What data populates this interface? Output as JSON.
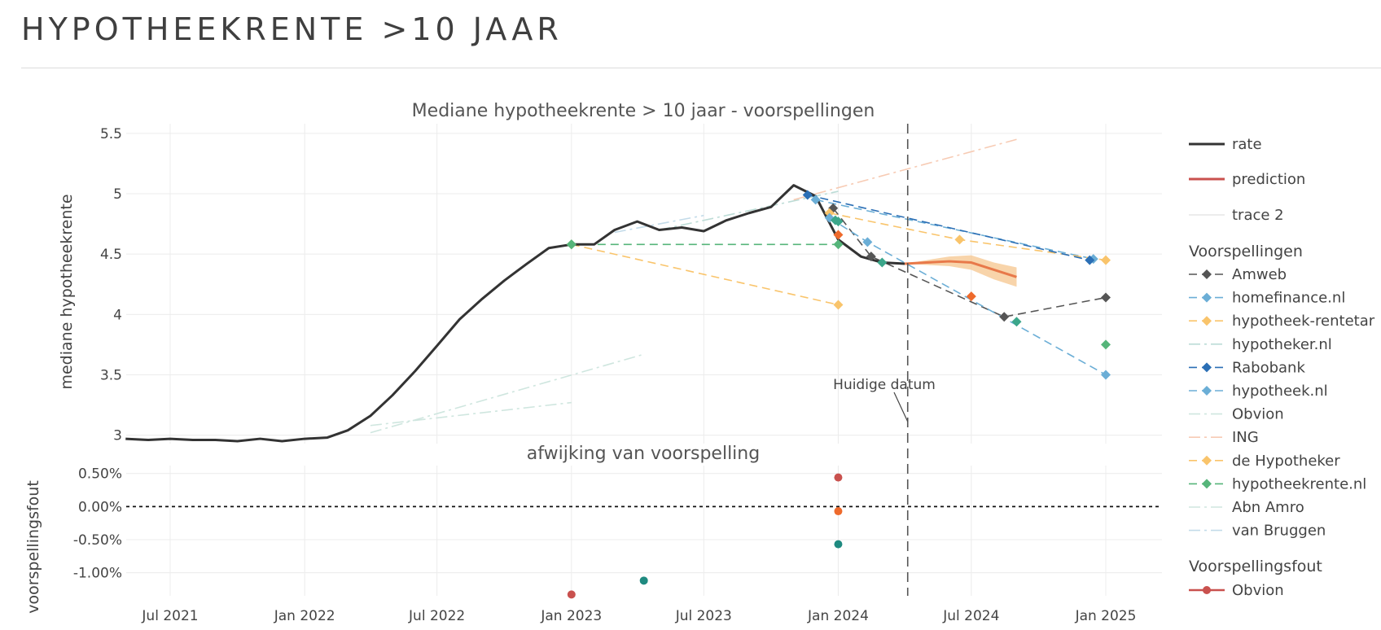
{
  "page": {
    "title": "HYPOTHEEKRENTE >10 JAAR"
  },
  "colors": {
    "rate": "#333333",
    "prediction": "#e8794a",
    "band": "#f5c58e",
    "grid": "#ececec",
    "text": "#444444"
  },
  "chart_data": [
    {
      "type": "line",
      "title": "Mediane hypotheekrente > 10 jaar - voorspellingen",
      "ylabel": "mediane hypotheekrente",
      "xlabel": "",
      "x_tick_labels": [
        "Jul 2021",
        "Jan 2022",
        "Jul 2022",
        "Jan 2023",
        "Jul 2023",
        "Jan 2024",
        "Jul 2024",
        "Jan 2025"
      ],
      "y_tick_labels": [
        "3",
        "3.5",
        "4",
        "4.5",
        "5",
        "5.5"
      ],
      "ylim": [
        2.93,
        5.58
      ],
      "grid": true,
      "legend": "right",
      "annotation": {
        "text": "Huidige datum",
        "x": "2024-04-05"
      },
      "series": [
        {
          "name": "rate",
          "color": "#333333",
          "x": [
            "2021-05-01",
            "2021-06-01",
            "2021-07-01",
            "2021-08-01",
            "2021-09-01",
            "2021-10-01",
            "2021-11-01",
            "2021-12-01",
            "2022-01-01",
            "2022-02-01",
            "2022-03-01",
            "2022-04-01",
            "2022-05-01",
            "2022-06-01",
            "2022-07-01",
            "2022-08-01",
            "2022-09-01",
            "2022-10-01",
            "2022-11-01",
            "2022-12-01",
            "2023-01-01",
            "2023-02-01",
            "2023-03-01",
            "2023-04-01",
            "2023-05-01",
            "2023-06-01",
            "2023-07-01",
            "2023-08-01",
            "2023-09-01",
            "2023-10-01",
            "2023-11-01",
            "2023-12-01",
            "2024-01-01",
            "2024-02-01",
            "2024-03-01",
            "2024-04-01"
          ],
          "y": [
            2.97,
            2.96,
            2.97,
            2.96,
            2.96,
            2.95,
            2.97,
            2.95,
            2.97,
            2.98,
            3.04,
            3.16,
            3.33,
            3.53,
            3.74,
            3.96,
            4.13,
            4.28,
            4.42,
            4.55,
            4.58,
            4.58,
            4.7,
            4.77,
            4.7,
            4.72,
            4.69,
            4.78,
            4.84,
            4.89,
            5.07,
            4.98,
            4.62,
            4.48,
            4.43,
            4.42
          ]
        },
        {
          "name": "prediction",
          "color": "#e8794a",
          "x": [
            "2024-04-01",
            "2024-05-01",
            "2024-06-01",
            "2024-07-01",
            "2024-08-01",
            "2024-09-01"
          ],
          "y": [
            4.42,
            4.43,
            4.44,
            4.43,
            4.37,
            4.31
          ],
          "band_low": [
            4.42,
            4.41,
            4.4,
            4.37,
            4.29,
            4.23
          ],
          "band_high": [
            4.42,
            4.45,
            4.48,
            4.49,
            4.43,
            4.39
          ]
        },
        {
          "name": "trace 2",
          "color": "#e0e0e0",
          "x": [],
          "y": []
        }
      ]
    },
    {
      "type": "scatter",
      "title": "afwijking van voorspelling",
      "ylabel": "voorspellingsfout",
      "y_tick_labels": [
        "0.50%",
        "0.00%",
        "-0.50%",
        "-1.00%"
      ],
      "ylim": [
        -1.35,
        0.62
      ],
      "zero_line": true,
      "points": [
        {
          "x": "2023-01-01",
          "y": -1.33,
          "color": "#c9514e"
        },
        {
          "x": "2023-04-10",
          "y": -1.12,
          "color": "#1f8a80"
        },
        {
          "x": "2024-01-01",
          "y": 0.44,
          "color": "#c9514e"
        },
        {
          "x": "2024-01-01",
          "y": -0.07,
          "color": "#ee6a2c"
        },
        {
          "x": "2024-01-01",
          "y": -0.57,
          "color": "#1f8a80"
        }
      ]
    }
  ],
  "voorspellingen": [
    {
      "name": "Amweb",
      "color": "#555555",
      "dash": "10,6",
      "marker": true,
      "from": {
        "x": "2023-12-25",
        "y": 4.88
      },
      "points": [
        {
          "x": "2024-02-15",
          "y": 4.48
        },
        {
          "x": "2024-08-15",
          "y": 3.98
        },
        {
          "x": "2025-01-01",
          "y": 4.14
        }
      ]
    },
    {
      "name": "homefinance.nl",
      "color": "#6baed6",
      "dash": "10,6",
      "marker": true,
      "from": {
        "x": "2023-12-01",
        "y": 4.95
      },
      "points": [
        {
          "x": "2024-12-15",
          "y": 4.46
        }
      ]
    },
    {
      "name": "hypotheek-rentetar",
      "color": "#f9c46b",
      "dash": "10,6",
      "marker": true,
      "from": {
        "x": "2023-12-20",
        "y": 4.84
      },
      "points": [
        {
          "x": "2024-06-15",
          "y": 4.62
        },
        {
          "x": "2025-01-01",
          "y": 4.45
        }
      ]
    },
    {
      "name": "hypotheker.nl",
      "color": "#bcdcd6",
      "dash": "14,5,3,5",
      "marker": false,
      "from": {
        "x": "2023-05-01",
        "y": 4.7
      },
      "points": [
        {
          "x": "2024-01-01",
          "y": 5.02
        }
      ]
    },
    {
      "name": "Rabobank",
      "color": "#2b6fb5",
      "dash": "10,6",
      "marker": true,
      "from": {
        "x": "2023-11-20",
        "y": 4.99
      },
      "points": [
        {
          "x": "2024-12-10",
          "y": 4.45
        }
      ]
    },
    {
      "name": "hypotheek.nl",
      "color": "#6baed6",
      "dash": "10,6",
      "marker": true,
      "from": {
        "x": "2023-12-20",
        "y": 4.8
      },
      "points": [
        {
          "x": "2024-02-10",
          "y": 4.6
        },
        {
          "x": "2025-01-01",
          "y": 3.5
        }
      ]
    },
    {
      "name": "Obvion",
      "color": "#cfe6df",
      "dash": "14,5,3,5",
      "marker": false,
      "from": {
        "x": "2022-04-01",
        "y": 3.08
      },
      "points": [
        {
          "x": "2023-01-01",
          "y": 3.27
        }
      ]
    },
    {
      "name": "ING",
      "color": "#f7cbb4",
      "dash": "14,5,3,5",
      "marker": false,
      "from": {
        "x": "2023-11-01",
        "y": 4.95
      },
      "points": [
        {
          "x": "2024-09-01",
          "y": 5.45
        }
      ]
    },
    {
      "name": "de Hypotheker",
      "color": "#f9c46b",
      "dash": "10,6",
      "marker": true,
      "from": {
        "x": "2023-01-01",
        "y": 4.58
      },
      "points": [
        {
          "x": "2024-01-01",
          "y": 4.08
        }
      ]
    },
    {
      "name": "hypotheekrente.nl",
      "color": "#56b57a",
      "dash": "10,6",
      "marker": true,
      "from": {
        "x": "2023-01-01",
        "y": 4.58
      },
      "points": [
        {
          "x": "2024-01-01",
          "y": 4.58
        }
      ]
    },
    {
      "name": "Abn Amro",
      "color": "#cfe6df",
      "dash": "14,5,3,5",
      "marker": false,
      "from": {
        "x": "2022-04-01",
        "y": 3.02
      },
      "points": [
        {
          "x": "2023-04-10",
          "y": 3.67
        }
      ]
    },
    {
      "name": "van Bruggen",
      "color": "#c3dbe9",
      "dash": "14,5,3,5",
      "marker": false,
      "from": {
        "x": "2023-03-01",
        "y": 4.68
      },
      "points": [
        {
          "x": "2023-07-01",
          "y": 4.82
        }
      ]
    }
  ],
  "extra_markers": [
    {
      "x": "2024-01-01",
      "y": 4.66,
      "color": "#ee6a2c"
    },
    {
      "x": "2024-07-01",
      "y": 4.15,
      "color": "#ee6a2c"
    },
    {
      "x": "2024-09-01",
      "y": 3.94,
      "color": "#3ba68a"
    },
    {
      "x": "2025-01-01",
      "y": 3.75,
      "color": "#56b57a"
    },
    {
      "x": "2024-01-01",
      "y": 4.77,
      "color": "#3ba68a"
    },
    {
      "x": "2023-12-28",
      "y": 4.78,
      "color": "#3ba68a"
    },
    {
      "x": "2024-03-01",
      "y": 4.43,
      "color": "#3ba68a"
    },
    {
      "x": "2023-01-01",
      "y": 4.58,
      "color": "#56b57a"
    }
  ],
  "legend": {
    "top_items": [
      {
        "label": "rate",
        "color": "#333333",
        "dash": "",
        "marker": false,
        "width": 3
      },
      {
        "label": "prediction",
        "color": "#c9514e",
        "dash": "",
        "marker": false,
        "width": 3
      },
      {
        "label": "trace 2",
        "color": "#e6e6e6",
        "dash": "",
        "marker": false,
        "width": 1.5
      }
    ],
    "group1_title": "Voorspellingen",
    "group2_title": "Voorspellingsfout",
    "group2_items": [
      {
        "label": "Obvion",
        "color": "#c9514e",
        "dash": "",
        "marker": "circle",
        "width": 2.5
      }
    ]
  }
}
